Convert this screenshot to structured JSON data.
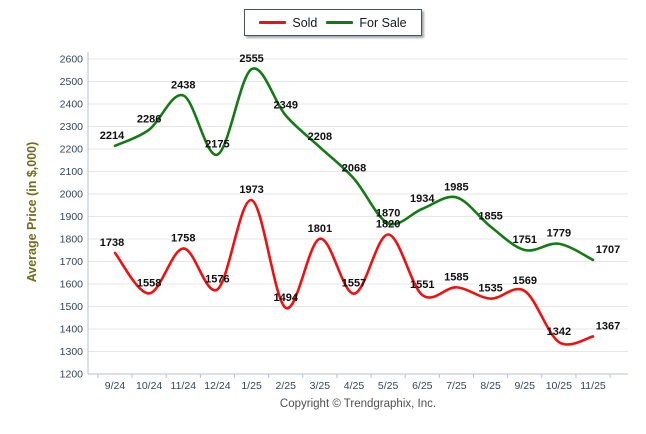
{
  "legend": {
    "items": [
      {
        "label": "Sold"
      },
      {
        "label": "For Sale"
      }
    ]
  },
  "y_axis_title": "Average Price (in $,000)",
  "footer": "Copyright © Trendgraphix, Inc.",
  "chart_data": {
    "type": "line",
    "title": "",
    "xlabel": "",
    "ylabel": "Average Price (in $,000)",
    "categories": [
      "9/24",
      "10/24",
      "11/24",
      "12/24",
      "1/25",
      "2/25",
      "3/25",
      "4/25",
      "5/25",
      "6/25",
      "7/25",
      "8/25",
      "9/25",
      "10/25",
      "11/25"
    ],
    "series": [
      {
        "name": "Sold",
        "color": "#ef1010",
        "values": [
          1738,
          1558,
          1758,
          1576,
          1973,
          1494,
          1801,
          1557,
          1820,
          1551,
          1585,
          1535,
          1569,
          1342,
          1367
        ]
      },
      {
        "name": "For Sale",
        "color": "#147b14",
        "values": [
          2214,
          2286,
          2438,
          2175,
          2555,
          2349,
          2208,
          2068,
          1870,
          1934,
          1985,
          1855,
          1751,
          1779,
          1707
        ]
      }
    ],
    "ylim": [
      1200,
      2600
    ],
    "ytick_step": 100,
    "grid": true,
    "smooth": true,
    "data_labels": true,
    "legend_position": "top-center"
  },
  "style_colors": {
    "grid": "#e7e7e7",
    "axis": "#b6c2d2",
    "tick_label": "#36455a",
    "data_label": "#101010",
    "y_title": "#6f6e1c"
  }
}
